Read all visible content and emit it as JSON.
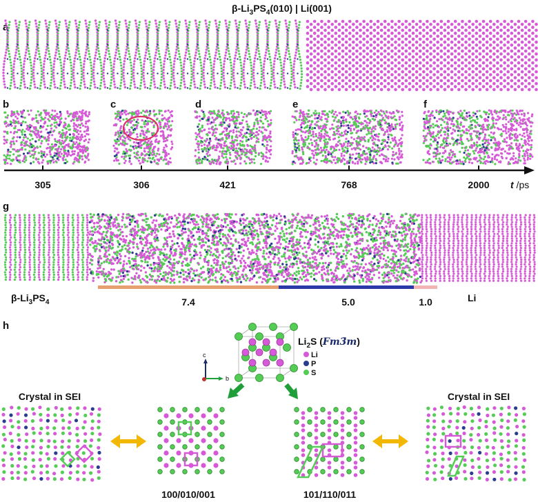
{
  "title": {
    "main": "β-Li",
    "sub1": "3",
    "mid": "PS",
    "sub2": "4",
    "tail": "(010) | Li(001)"
  },
  "panels": {
    "a": "a",
    "b": "b",
    "c": "c",
    "d": "d",
    "e": "e",
    "f": "f",
    "g": "g",
    "h": "h"
  },
  "timeline": {
    "ticks": [
      "305",
      "306",
      "421",
      "768",
      "2000"
    ],
    "unit_t": "t",
    "unit_rest": " /ps"
  },
  "panel_g": {
    "left_label_main": "β-Li",
    "left_label_sub1": "3",
    "left_label_mid": "PS",
    "left_label_sub2": "4",
    "right_label": "Li",
    "segments": [
      {
        "value": "7.4",
        "color": "#e6a070"
      },
      {
        "value": "5.0",
        "color": "#2b3aa8"
      },
      {
        "value": "1.0",
        "color": "#f2b4b4"
      }
    ]
  },
  "panel_h": {
    "compound_main": "Li",
    "compound_sub": "2",
    "compound_tail": "S (",
    "space_group": "Fm3̄m",
    "compound_close": ")",
    "legend": [
      {
        "label": "Li",
        "color": "#d65ad8"
      },
      {
        "label": "P",
        "color": "#2a3d8f"
      },
      {
        "label": "S",
        "color": "#55cc55"
      }
    ],
    "axes": {
      "c": "c",
      "b": "b"
    },
    "crystal_left": "Crystal in SEI",
    "crystal_right": "Crystal in SEI",
    "plane_left": "100/010/001",
    "plane_right": "101/110/011"
  },
  "colors": {
    "li": "#d65ad8",
    "s": "#55cc55",
    "p": "#2a3d8f",
    "arrow_green": "#1f9e3a",
    "arrow_gold": "#f2b705"
  }
}
